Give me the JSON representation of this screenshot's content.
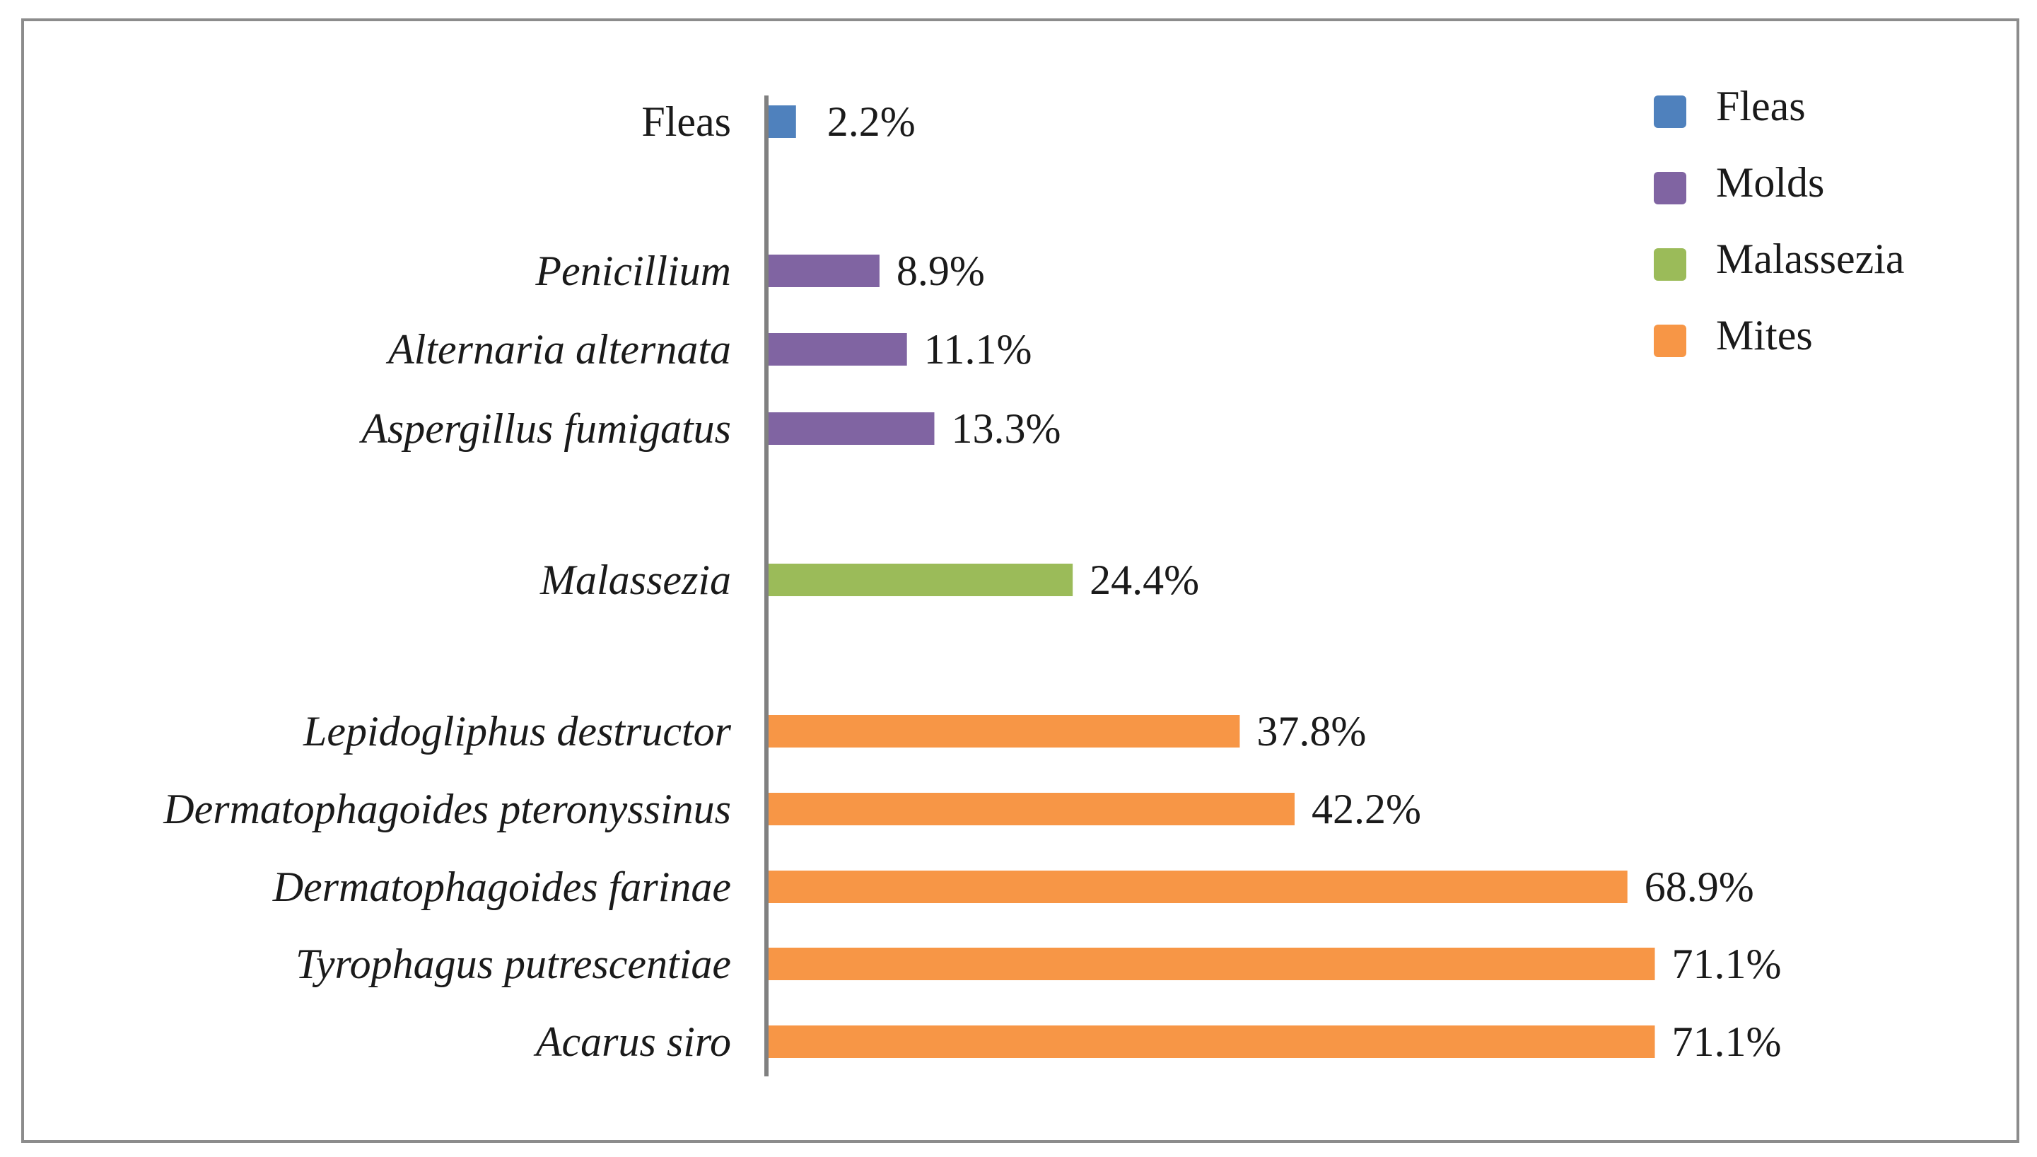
{
  "chart_data": {
    "type": "bar",
    "orientation": "horizontal",
    "title": "",
    "xlabel": "",
    "ylabel": "",
    "xlim": [
      0,
      100
    ],
    "grid": false,
    "legend_position": "top-right",
    "value_suffix": "%",
    "series": [
      {
        "name": "Fleas",
        "color": "#4f81bd"
      },
      {
        "name": "Molds",
        "color": "#8064a2"
      },
      {
        "name": "Malassezia",
        "color": "#9bbb59"
      },
      {
        "name": "Mites",
        "color": "#f79646"
      }
    ],
    "categories": [
      {
        "label": "Fleas",
        "value": 2.2,
        "series": "Fleas",
        "italic": false
      },
      {
        "label": "Penicillium",
        "value": 8.9,
        "series": "Molds",
        "italic": true
      },
      {
        "label": "Alternaria alternata",
        "value": 11.1,
        "series": "Molds",
        "italic": true
      },
      {
        "label": "Aspergillus fumigatus",
        "value": 13.3,
        "series": "Molds",
        "italic": true
      },
      {
        "label": "Malassezia",
        "value": 24.4,
        "series": "Malassezia",
        "italic": true
      },
      {
        "label": "Lepidogliphus destructor",
        "value": 37.8,
        "series": "Mites",
        "italic": true
      },
      {
        "label": "Dermatophagoides pteronyssinus",
        "value": 42.2,
        "series": "Mites",
        "italic": true
      },
      {
        "label": "Dermatophagoides farinae",
        "value": 68.9,
        "series": "Mites",
        "italic": true
      },
      {
        "label": "Tyrophagus putrescentiae",
        "value": 71.1,
        "series": "Mites",
        "italic": true
      },
      {
        "label": "Acarus siro",
        "value": 71.1,
        "series": "Mites",
        "italic": true
      }
    ]
  }
}
